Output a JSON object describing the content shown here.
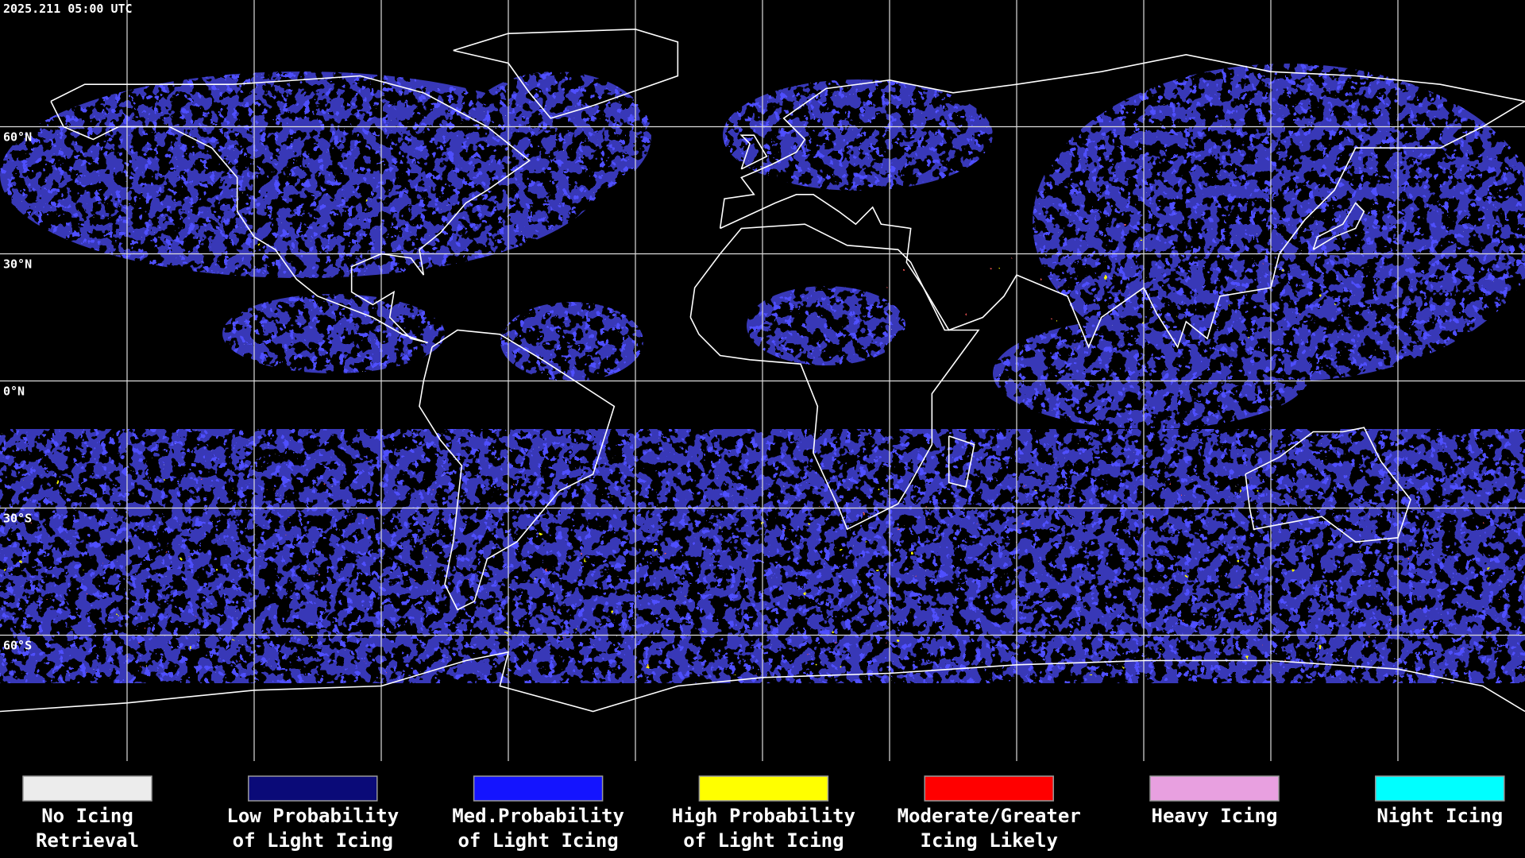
{
  "header": {
    "timestamp": "2025.211 05:00 UTC"
  },
  "latitude_labels": [
    "60°N",
    "30°N",
    "0°N",
    "30°S",
    "60°S"
  ],
  "legend": [
    {
      "lines": [
        "No Icing",
        "Retrieval"
      ],
      "color": "#ececec"
    },
    {
      "lines": [
        "Low Probability",
        "of Light Icing"
      ],
      "color": "#0a0a78"
    },
    {
      "lines": [
        "Med.Probability",
        "of Light Icing"
      ],
      "color": "#1414ff"
    },
    {
      "lines": [
        "High Probability",
        "of Light Icing"
      ],
      "color": "#ffff00"
    },
    {
      "lines": [
        "Moderate/Greater",
        "Icing Likely"
      ],
      "color": "#ff0000"
    },
    {
      "lines": [
        "Heavy Icing"
      ],
      "color": "#e8a0e0"
    },
    {
      "lines": [
        "Night Icing"
      ],
      "color": "#00ffff"
    }
  ]
}
